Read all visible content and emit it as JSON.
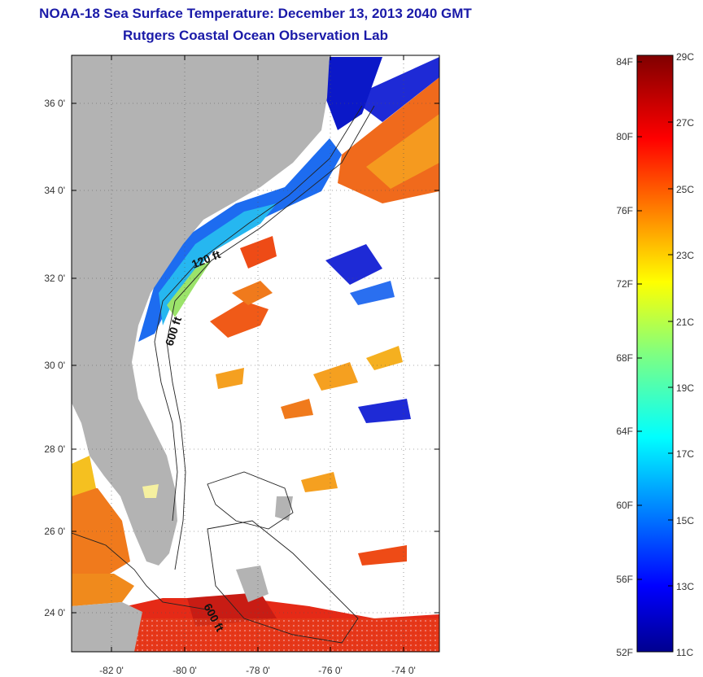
{
  "header": {
    "title": "NOAA-18 Sea Surface Temperature:  December 13, 2013 2040 GMT",
    "subtitle": "Rutgers Coastal Ocean Observation Lab"
  },
  "map": {
    "lat_range": [
      23.0,
      37.0
    ],
    "lon_range": [
      -83.0,
      -73.0
    ],
    "lat_ticks": [
      "36 0'",
      "34 0'",
      "32 0'",
      "30 0'",
      "28 0'",
      "26 0'",
      "24 0'"
    ],
    "lon_ticks": [
      "-82 0'",
      "-80 0'",
      "-78 0'",
      "-76 0'",
      "-74 0'"
    ],
    "depth_labels": {
      "shelf_120": "120 ft",
      "slope_600_north": "600 ft",
      "slope_600_south": "600 ft"
    },
    "land_color": "#b3b3b3",
    "cloud_color": "#ffffff"
  },
  "colorbar": {
    "fahrenheit_labels": [
      "84F",
      "80F",
      "76F",
      "72F",
      "68F",
      "64F",
      "60F",
      "56F",
      "52F"
    ],
    "celsius_labels": [
      "29C",
      "27C",
      "25C",
      "23C",
      "21C",
      "19C",
      "17C",
      "15C",
      "13C",
      "11C"
    ],
    "range_c": [
      11,
      29
    ],
    "colormap": "jet"
  }
}
